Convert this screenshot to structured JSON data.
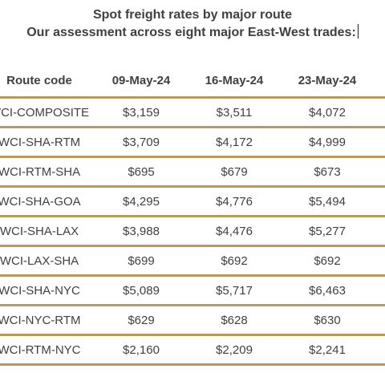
{
  "chart_data": {
    "type": "table",
    "title": "Spot freight rates by major route",
    "subtitle": "Our assessment across eight major East-West trades:",
    "columns": [
      "Route code",
      "09-May-24",
      "16-May-24",
      "23-May-24"
    ],
    "rows": [
      {
        "route": "WCI-COMPOSITE",
        "values": [
          "$3,159",
          "$3,511",
          "$4,072"
        ]
      },
      {
        "route": "WCI-SHA-RTM",
        "values": [
          "$3,709",
          "$4,172",
          "$4,999"
        ]
      },
      {
        "route": "WCI-RTM-SHA",
        "values": [
          "$695",
          "$679",
          "$673"
        ]
      },
      {
        "route": "WCI-SHA-GOA",
        "values": [
          "$4,295",
          "$4,776",
          "$5,494"
        ]
      },
      {
        "route": "WCI-SHA-LAX",
        "values": [
          "$3,988",
          "$4,476",
          "$5,277"
        ]
      },
      {
        "route": "WCI-LAX-SHA",
        "values": [
          "$699",
          "$692",
          "$692"
        ]
      },
      {
        "route": "WCI-SHA-NYC",
        "values": [
          "$5,089",
          "$5,717",
          "$6,463"
        ]
      },
      {
        "route": "WCI-NYC-RTM",
        "values": [
          "$629",
          "$628",
          "$630"
        ]
      },
      {
        "route": "WCI-RTM-NYC",
        "values": [
          "$2,160",
          "$2,209",
          "$2,241"
        ]
      }
    ],
    "colors": {
      "text": "#404040",
      "rule": "#b89a5a"
    }
  }
}
